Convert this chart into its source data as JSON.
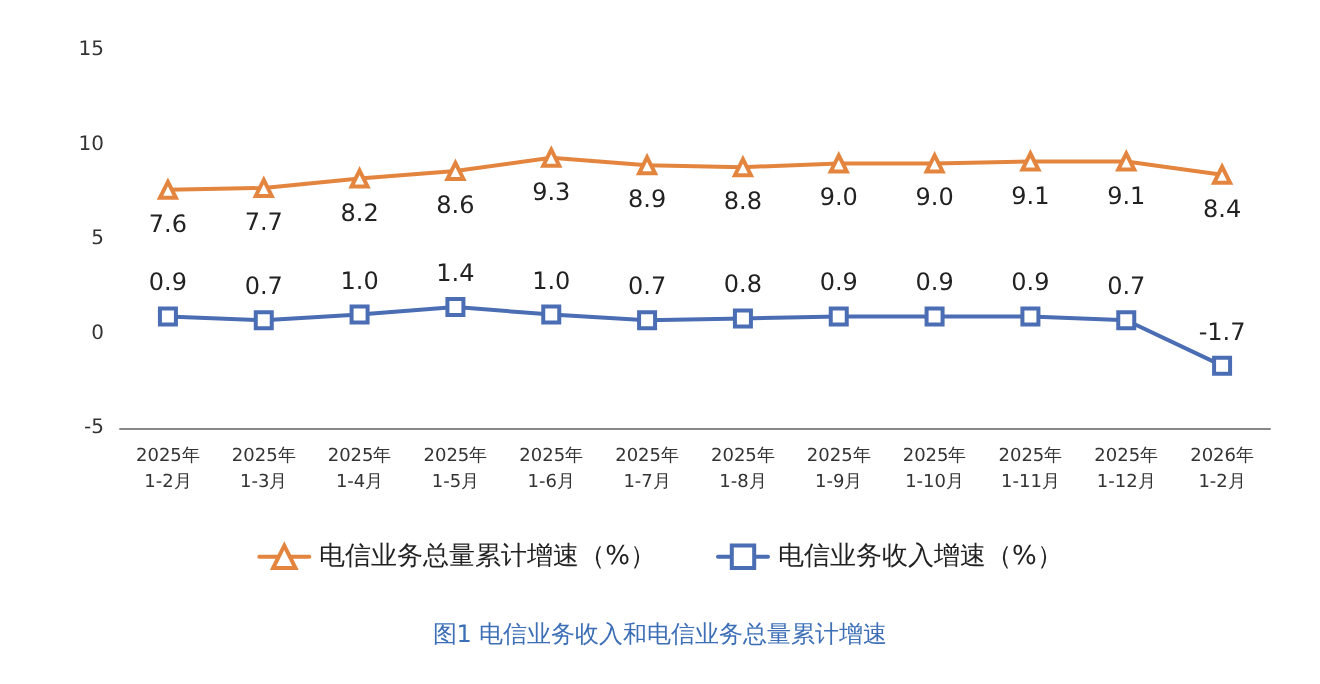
{
  "chart_data": {
    "type": "line",
    "title": "图1 电信业务收入和电信业务总量累计增速",
    "categories": [
      "2025年\n1-2月",
      "2025年\n1-3月",
      "2025年\n1-4月",
      "2025年\n1-5月",
      "2025年\n1-6月",
      "2025年\n1-7月",
      "2025年\n1-8月",
      "2025年\n1-9月",
      "2025年\n1-10月",
      "2025年\n1-11月",
      "2025年\n1-12月",
      "2026年\n1-2月"
    ],
    "series": [
      {
        "name": "电信业务总量累计增速（%）",
        "color": "#e3853f",
        "marker": "triangle",
        "values": [
          7.6,
          7.7,
          8.2,
          8.6,
          9.3,
          8.9,
          8.8,
          9.0,
          9.0,
          9.1,
          9.1,
          8.4
        ],
        "value_labels": [
          "7.6",
          "7.7",
          "8.2",
          "8.6",
          "9.3",
          "8.9",
          "8.8",
          "9.0",
          "9.0",
          "9.1",
          "9.1",
          "8.4"
        ]
      },
      {
        "name": "电信业务收入增速（%）",
        "color": "#4a6db3",
        "marker": "square",
        "values": [
          0.9,
          0.7,
          1.0,
          1.4,
          1.0,
          0.7,
          0.8,
          0.9,
          0.9,
          0.9,
          0.7,
          -1.7
        ],
        "value_labels": [
          "0.9",
          "0.7",
          "1.0",
          "1.4",
          "1.0",
          "0.7",
          "0.8",
          "0.9",
          "0.9",
          "0.9",
          "0.7",
          "-1.7"
        ]
      }
    ],
    "ylim": [
      -5,
      15
    ],
    "yticks": [
      -5,
      0,
      5,
      10,
      15
    ],
    "grid": false,
    "legend": "bottom",
    "line_style": "solid"
  }
}
